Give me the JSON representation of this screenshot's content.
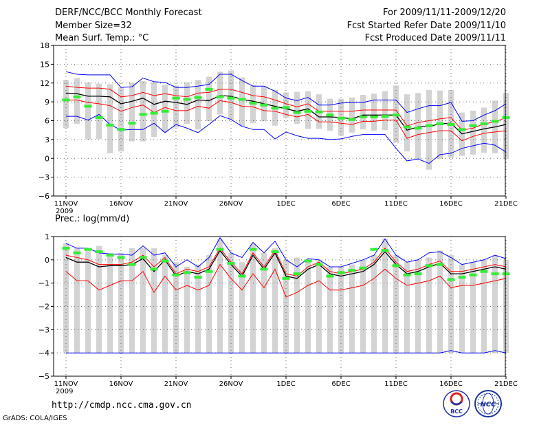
{
  "header": {
    "left_line1": "DERF/NCC/BCC Monthly Forecast",
    "left_line2": "Member Size=32",
    "left_line3": "Mean Surf. Temp.: °C",
    "right_line1": "For 2009/11/11-2009/12/20",
    "right_line2": "Fcst Started Refer Date 2009/11/10",
    "right_line3": "Fcst Produced Date 2009/11/11"
  },
  "footer": {
    "url": "http://cmdp.ncc.cma.gov.cn",
    "credit": "GrADS: COLA/IGES",
    "logo_bcc": "BCC",
    "logo_ncc": "NCC"
  },
  "colors": {
    "box": "#d3d3d3",
    "obs": "#33ee33",
    "outer": "#0000ff",
    "inner": "#ff0000",
    "mean": "#000000",
    "grid": "#666666"
  },
  "chart_data": [
    {
      "type": "line",
      "title": "Mean Surf. Temp.: °C",
      "ylim": [
        -6,
        18
      ],
      "yticks": [
        "18",
        "15",
        "12",
        "9",
        "6",
        "3",
        "0",
        "−3",
        "−6"
      ],
      "ytick_values": [
        18,
        15,
        12,
        9,
        6,
        3,
        0,
        -3,
        -6
      ],
      "xlim": [
        0,
        40
      ],
      "xticks": [
        {
          "x": 0,
          "label": "11NOV",
          "sub": "2009"
        },
        {
          "x": 5,
          "label": "16NOV"
        },
        {
          "x": 10,
          "label": "21NOV"
        },
        {
          "x": 15,
          "label": "26NOV"
        },
        {
          "x": 20,
          "label": "1DEC"
        },
        {
          "x": 25,
          "label": "6DEC"
        },
        {
          "x": 30,
          "label": "11DEC"
        },
        {
          "x": 35,
          "label": "16DEC"
        },
        {
          "x": 40,
          "label": "21DEC"
        }
      ],
      "series": [
        {
          "name": "max",
          "color": "#0000ff",
          "values": [
            13.8,
            13.4,
            13.3,
            13.3,
            13.3,
            11.3,
            11.4,
            12.8,
            12.2,
            12.1,
            11.3,
            11.3,
            11.5,
            11.8,
            13.4,
            13.4,
            12.4,
            11.5,
            11.5,
            10.7,
            9.6,
            9.2,
            9.7,
            8.5,
            8.5,
            8.8,
            8.9,
            8.9,
            9.3,
            9.3,
            9.3,
            7.3,
            7.9,
            8.4,
            8.4,
            8.9,
            5.9,
            6.0,
            6.9,
            7.6,
            8.7
          ]
        },
        {
          "name": "upper",
          "color": "#ff0000",
          "values": [
            11.5,
            11.3,
            11.2,
            11.2,
            11.0,
            9.8,
            10.0,
            10.5,
            10.0,
            10.3,
            10.0,
            9.8,
            10.4,
            10.5,
            11.0,
            11.0,
            10.5,
            10.0,
            9.8,
            9.3,
            8.7,
            8.2,
            8.7,
            7.5,
            7.5,
            7.5,
            7.5,
            7.7,
            7.7,
            7.7,
            7.7,
            5.2,
            5.7,
            6.0,
            6.3,
            6.5,
            4.5,
            4.8,
            5.5,
            5.8,
            6.5
          ]
        },
        {
          "name": "mean",
          "color": "#000000",
          "values": [
            10.4,
            10.3,
            9.9,
            9.9,
            9.8,
            8.7,
            9.1,
            9.6,
            8.6,
            9.1,
            8.9,
            8.6,
            9.3,
            9.2,
            10.0,
            9.9,
            9.4,
            9.1,
            8.7,
            8.3,
            7.9,
            7.5,
            7.9,
            6.6,
            6.6,
            6.5,
            6.3,
            6.9,
            6.9,
            6.9,
            6.9,
            4.5,
            5.0,
            5.1,
            5.5,
            5.6,
            3.9,
            4.3,
            4.7,
            5.0,
            5.4
          ]
        },
        {
          "name": "lower",
          "color": "#ff0000",
          "values": [
            9.3,
            9.3,
            8.9,
            8.7,
            8.4,
            7.5,
            8.1,
            8.5,
            7.3,
            8.1,
            7.6,
            7.6,
            8.3,
            8.0,
            9.2,
            8.9,
            8.3,
            8.2,
            7.6,
            7.5,
            7.0,
            6.6,
            7.0,
            5.8,
            5.8,
            5.6,
            5.4,
            5.9,
            5.9,
            6.1,
            6.1,
            3.2,
            3.8,
            4.1,
            4.4,
            4.4,
            2.8,
            3.5,
            4.0,
            4.2,
            4.4
          ]
        },
        {
          "name": "min",
          "color": "#0000ff",
          "values": [
            6.7,
            6.7,
            6.1,
            7.0,
            5.4,
            4.5,
            4.6,
            4.6,
            5.6,
            4.1,
            5.4,
            4.8,
            4.1,
            5.4,
            6.8,
            6.2,
            5.1,
            4.6,
            4.6,
            3.1,
            4.2,
            3.6,
            3.2,
            3.2,
            3.0,
            3.1,
            3.5,
            3.8,
            3.8,
            3.8,
            1.6,
            -0.4,
            -0.1,
            -0.8,
            0.6,
            0.8,
            1.6,
            2.0,
            2.4,
            2.1,
            1.0
          ]
        }
      ],
      "box_high": [
        12.5,
        12.8,
        12.1,
        11.9,
        11.8,
        11.3,
        12.0,
        12.3,
        12.1,
        11.7,
        11.6,
        12.1,
        12.5,
        13.0,
        13.8,
        14.0,
        12.9,
        11.7,
        11.5,
        10.9,
        10.5,
        10.6,
        10.7,
        10.2,
        9.5,
        9.5,
        9.7,
        10.1,
        10.3,
        10.7,
        11.6,
        10.2,
        10.4,
        10.9,
        10.8,
        10.9,
        7.3,
        7.6,
        8.1,
        9.2,
        10.4
      ],
      "box_low": [
        4.8,
        5.5,
        3.0,
        3.1,
        0.8,
        1.1,
        2.7,
        2.7,
        3.4,
        4.2,
        4.9,
        5.5,
        4.6,
        5.9,
        7.0,
        6.2,
        5.1,
        5.6,
        5.9,
        5.2,
        6.5,
        5.5,
        4.7,
        4.7,
        4.4,
        3.6,
        4.1,
        4.6,
        4.4,
        4.5,
        2.5,
        1.1,
        -0.1,
        -1.8,
        -0.1,
        0.1,
        0.4,
        0.6,
        0.9,
        0.8,
        -0.1
      ],
      "observed": [
        9.3,
        9.8,
        8.3,
        6.5,
        5.3,
        4.6,
        5.6,
        7.0,
        7.2,
        7.5,
        9.6,
        9.4,
        9.7,
        11.0,
        9.8,
        9.6,
        9.4,
        8.8,
        8.5,
        8.0,
        8.1,
        7.3,
        7.5,
        7.4,
        6.9,
        6.4,
        6.2,
        6.6,
        6.6,
        6.7,
        6.9,
        5.0,
        4.8,
        5.2,
        5.5,
        5.4,
        4.6,
        5.2,
        5.5,
        5.9,
        6.5
      ]
    },
    {
      "type": "line",
      "title": "Prec.: log(mm/d)",
      "ylim": [
        -5,
        1
      ],
      "yticks": [
        "1",
        "0",
        "−1",
        "−2",
        "−3",
        "−4",
        "−5"
      ],
      "ytick_values": [
        1,
        0,
        -1,
        -2,
        -3,
        -4,
        -5
      ],
      "xlim": [
        0,
        40
      ],
      "xticks": [
        {
          "x": 0,
          "label": "11NOV",
          "sub": "2009"
        },
        {
          "x": 5,
          "label": "16NOV"
        },
        {
          "x": 10,
          "label": "21NOV"
        },
        {
          "x": 15,
          "label": "26NOV"
        },
        {
          "x": 20,
          "label": "1DEC"
        },
        {
          "x": 25,
          "label": "6DEC"
        },
        {
          "x": 30,
          "label": "11DEC"
        },
        {
          "x": 35,
          "label": "16DEC"
        },
        {
          "x": 40,
          "label": "21DEC"
        }
      ],
      "series": [
        {
          "name": "max",
          "color": "#0000ff",
          "values": [
            0.7,
            0.5,
            0.5,
            0.3,
            0.25,
            0.25,
            0.2,
            0.6,
            0.2,
            0.3,
            -0.3,
            0.0,
            -0.3,
            0.1,
            0.95,
            0.3,
            0.1,
            0.75,
            0.3,
            0.8,
            0.0,
            -0.3,
            0.05,
            0.0,
            -0.3,
            -0.3,
            -0.15,
            0.0,
            0.2,
            0.9,
            0.2,
            -0.1,
            0.0,
            0.3,
            0.35,
            0.1,
            -0.2,
            -0.1,
            0.0,
            0.2,
            0.05
          ]
        },
        {
          "name": "upper",
          "color": "#ff0000",
          "values": [
            0.2,
            0.1,
            0.0,
            -0.2,
            -0.2,
            -0.2,
            -0.1,
            0.2,
            -0.3,
            0.1,
            -0.6,
            -0.4,
            -0.5,
            -0.3,
            0.5,
            -0.1,
            -0.6,
            0.3,
            -0.3,
            0.4,
            -0.6,
            -0.7,
            -0.3,
            -0.1,
            -0.5,
            -0.6,
            -0.5,
            -0.4,
            -0.1,
            0.5,
            -0.1,
            -0.5,
            -0.4,
            -0.2,
            -0.05,
            -0.5,
            -0.5,
            -0.4,
            -0.3,
            -0.2,
            -0.3
          ]
        },
        {
          "name": "mean",
          "color": "#000000",
          "values": [
            0.1,
            -0.1,
            -0.1,
            -0.3,
            -0.25,
            -0.25,
            -0.2,
            0.05,
            -0.5,
            0.0,
            -0.7,
            -0.5,
            -0.6,
            -0.4,
            0.4,
            -0.2,
            -0.7,
            0.2,
            -0.4,
            0.3,
            -0.7,
            -0.8,
            -0.4,
            -0.2,
            -0.6,
            -0.7,
            -0.6,
            -0.5,
            -0.2,
            0.35,
            -0.2,
            -0.6,
            -0.5,
            -0.3,
            -0.15,
            -0.6,
            -0.6,
            -0.5,
            -0.4,
            -0.3,
            -0.4
          ]
        },
        {
          "name": "lower",
          "color": "#ff0000",
          "values": [
            -0.5,
            -0.9,
            -0.9,
            -1.3,
            -1.1,
            -0.9,
            -0.9,
            -0.5,
            -1.4,
            -0.7,
            -1.3,
            -1.1,
            -1.3,
            -1.1,
            -0.2,
            -0.8,
            -1.3,
            -0.6,
            -1.2,
            -0.4,
            -1.6,
            -1.4,
            -1.1,
            -0.9,
            -1.3,
            -1.3,
            -1.2,
            -1.1,
            -0.8,
            -0.4,
            -0.8,
            -1.1,
            -1.0,
            -0.9,
            -0.7,
            -1.2,
            -1.1,
            -1.1,
            -1.0,
            -0.9,
            -0.8
          ]
        },
        {
          "name": "min",
          "color": "#0000ff",
          "values": [
            -4,
            -4,
            -4,
            -4,
            -4,
            -4,
            -4,
            -4,
            -4,
            -4,
            -4,
            -4,
            -4,
            -4,
            -4,
            -4,
            -4,
            -4,
            -4,
            -4,
            -4,
            -4,
            -4,
            -4,
            -4,
            -4,
            -4,
            -4,
            -4,
            -4,
            -4,
            -4,
            -4,
            -4,
            -4,
            -3.9,
            -4,
            -4,
            -4,
            -3.9,
            -4
          ]
        }
      ],
      "box_high": [
        0.7,
        0.5,
        0.5,
        0.6,
        0.3,
        0.3,
        0.5,
        0.5,
        0.5,
        0.2,
        -0.1,
        -0.3,
        -0.2,
        0.2,
        0.9,
        0.3,
        -0.1,
        0.7,
        0.3,
        0.5,
        0.0,
        0.1,
        0.0,
        0.0,
        -0.3,
        -0.3,
        -0.2,
        0.0,
        0.2,
        0.9,
        0.2,
        -0.1,
        0.0,
        0.1,
        0.4,
        0.2,
        -0.2,
        -0.1,
        0.0,
        0.2,
        0.0
      ],
      "box_low": [
        -4,
        -4,
        -4,
        -4,
        -4,
        -4,
        -4,
        -4,
        -4,
        -4,
        -4,
        -4,
        -4,
        -4,
        -4,
        -4,
        -4,
        -4,
        -4,
        -4,
        -4,
        -4,
        -4,
        -4,
        -4,
        -4,
        -4,
        -4,
        -4,
        -4,
        -4,
        -4,
        -4,
        -4,
        -4,
        -4,
        -4,
        -4,
        -4,
        -4,
        -4
      ],
      "observed": [
        0.5,
        0.3,
        0.45,
        0.35,
        0.2,
        0.1,
        -0.2,
        0.1,
        -0.4,
        -0.05,
        -0.65,
        -0.55,
        -0.75,
        -0.5,
        0.45,
        -0.15,
        -0.7,
        0.45,
        -0.4,
        0.35,
        -0.8,
        -0.6,
        -0.05,
        -0.2,
        -0.7,
        -0.55,
        -0.45,
        -0.35,
        0.45,
        0.4,
        -0.25,
        -0.65,
        -0.6,
        -0.25,
        -0.2,
        -0.85,
        -0.75,
        -0.65,
        -0.5,
        -0.6,
        -0.6
      ]
    }
  ]
}
